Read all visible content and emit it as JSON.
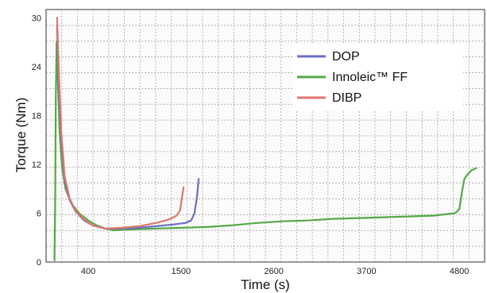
{
  "chart_data": {
    "type": "line",
    "xlabel": "Time (s)",
    "ylabel": "Torque (Nm)",
    "xlim": [
      -100,
      5100
    ],
    "ylim": [
      0,
      31
    ],
    "x_ticks": [
      400,
      1500,
      2600,
      3700,
      4800
    ],
    "y_ticks": [
      0,
      6,
      12,
      18,
      24,
      30
    ],
    "grid": true,
    "legend_position": "upper right",
    "series": [
      {
        "name": "DOP",
        "color": "#6b6fc4",
        "points": [
          [
            30,
            29
          ],
          [
            50,
            22
          ],
          [
            80,
            15
          ],
          [
            120,
            10
          ],
          [
            180,
            7.6
          ],
          [
            250,
            6.2
          ],
          [
            350,
            5.1
          ],
          [
            450,
            4.5
          ],
          [
            600,
            4.1
          ],
          [
            800,
            4.1
          ],
          [
            1000,
            4.2
          ],
          [
            1200,
            4.4
          ],
          [
            1400,
            4.6
          ],
          [
            1550,
            4.8
          ],
          [
            1620,
            5.1
          ],
          [
            1660,
            6.0
          ],
          [
            1690,
            8.0
          ],
          [
            1710,
            10.2
          ]
        ]
      },
      {
        "name": "Innoleic™ FF",
        "color": "#55a848",
        "points": [
          [
            0,
            0.2
          ],
          [
            8,
            8
          ],
          [
            15,
            20
          ],
          [
            25,
            27
          ],
          [
            40,
            22
          ],
          [
            60,
            16
          ],
          [
            90,
            11.5
          ],
          [
            130,
            9
          ],
          [
            200,
            7.2
          ],
          [
            300,
            5.9
          ],
          [
            400,
            5.1
          ],
          [
            500,
            4.5
          ],
          [
            600,
            4.1
          ],
          [
            700,
            3.9
          ],
          [
            900,
            4.0
          ],
          [
            1200,
            4.1
          ],
          [
            1500,
            4.2
          ],
          [
            1800,
            4.3
          ],
          [
            2100,
            4.5
          ],
          [
            2400,
            4.8
          ],
          [
            2700,
            5.0
          ],
          [
            3000,
            5.1
          ],
          [
            3300,
            5.3
          ],
          [
            3600,
            5.4
          ],
          [
            3900,
            5.5
          ],
          [
            4200,
            5.6
          ],
          [
            4500,
            5.7
          ],
          [
            4750,
            6.0
          ],
          [
            4800,
            6.5
          ],
          [
            4830,
            8.5
          ],
          [
            4860,
            10.2
          ],
          [
            4900,
            10.8
          ],
          [
            4950,
            11.3
          ],
          [
            5000,
            11.5
          ]
        ]
      },
      {
        "name": "DIBP",
        "color": "#e0766b",
        "points": [
          [
            30,
            30
          ],
          [
            50,
            24
          ],
          [
            80,
            16
          ],
          [
            120,
            10.5
          ],
          [
            180,
            7.8
          ],
          [
            250,
            6.3
          ],
          [
            350,
            5.2
          ],
          [
            450,
            4.5
          ],
          [
            600,
            4.1
          ],
          [
            800,
            4.2
          ],
          [
            1000,
            4.4
          ],
          [
            1200,
            4.8
          ],
          [
            1350,
            5.2
          ],
          [
            1450,
            5.7
          ],
          [
            1490,
            6.4
          ],
          [
            1510,
            7.8
          ],
          [
            1530,
            9.2
          ]
        ]
      }
    ]
  }
}
